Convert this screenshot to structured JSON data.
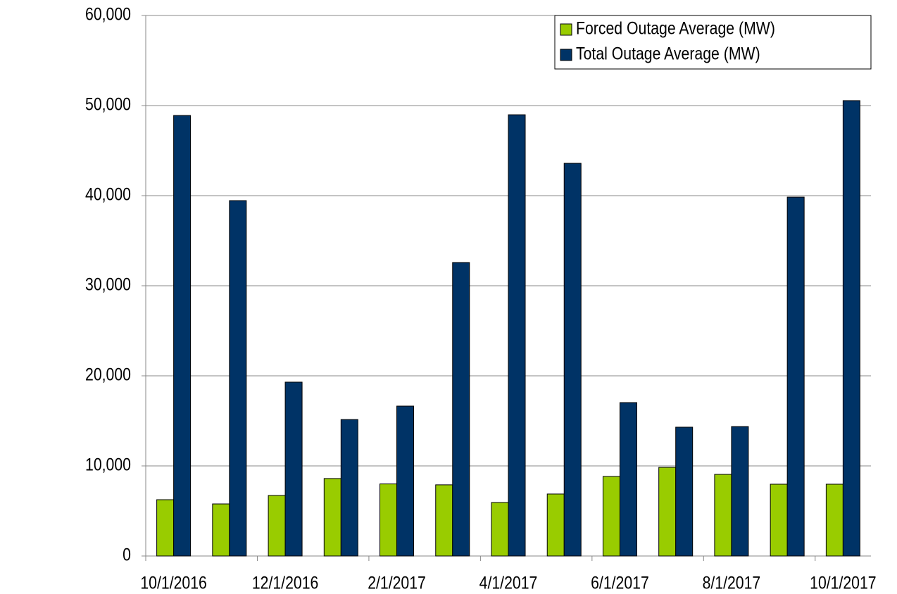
{
  "chart_data": {
    "type": "bar",
    "categories": [
      "10/1/2016",
      null,
      "12/1/2016",
      null,
      "2/1/2017",
      null,
      "4/1/2017",
      null,
      "6/1/2017",
      null,
      "8/1/2017",
      null,
      "10/1/2017"
    ],
    "series": [
      {
        "name": "Forced Outage Average (MW)",
        "color": "#99cc00",
        "values": [
          6250,
          5780,
          6720,
          8600,
          8000,
          7900,
          5940,
          6880,
          8830,
          9840,
          9060,
          7970,
          7970
        ]
      },
      {
        "name": "Total Outage Average (MW)",
        "color": "#003366",
        "values": [
          48900,
          39450,
          19300,
          15150,
          16640,
          32580,
          48980,
          43590,
          17030,
          14300,
          14370,
          39840,
          50550
        ]
      }
    ],
    "ylim": [
      0,
      60000
    ],
    "yticks": [
      0,
      {
        "value": 10000,
        "label": "10,000"
      },
      {
        "value": 20000,
        "label": "20,000"
      },
      {
        "value": 30000,
        "label": "30,000"
      },
      {
        "value": 40000,
        "label": "40,000"
      },
      {
        "value": 50000,
        "label": "50,000"
      },
      {
        "value": 60000,
        "label": "60,000"
      }
    ],
    "grid": true,
    "legend": "top-right"
  }
}
